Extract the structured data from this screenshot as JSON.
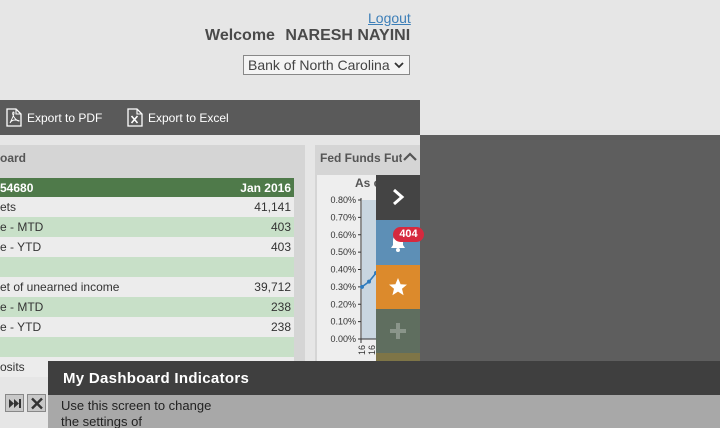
{
  "header": {
    "logout": "Logout",
    "welcome": "Welcome",
    "user": "NARESH NAYINI",
    "bank": "Bank of North Carolina"
  },
  "toolbar": {
    "pdf": "Export to PDF",
    "excel": "Export to Excel"
  },
  "dashboard": {
    "title": "oard",
    "header_left": "54680",
    "header_right": "Jan 2016",
    "rows": [
      {
        "label": "ets",
        "value": "41,141"
      },
      {
        "label": "e - MTD",
        "value": "403"
      },
      {
        "label": "e - YTD",
        "value": "403"
      },
      {
        "label": "",
        "value": ""
      },
      {
        "label": "et of unearned income",
        "value": "39,712"
      },
      {
        "label": "e - MTD",
        "value": "238"
      },
      {
        "label": "e - YTD",
        "value": "238"
      },
      {
        "label": "",
        "value": ""
      },
      {
        "label": "osits",
        "value": ""
      }
    ]
  },
  "fed": {
    "title": "Fed Funds Fut",
    "asof": "As o"
  },
  "chart_data": {
    "type": "line",
    "title": "Fed Funds Fut",
    "ytick_labels": [
      "0.80%",
      "0.70%",
      "0.60%",
      "0.50%",
      "0.40%",
      "0.30%",
      "0.20%",
      "0.10%",
      "0.00%"
    ],
    "yticks": [
      0.8,
      0.7,
      0.6,
      0.5,
      0.4,
      0.3,
      0.2,
      0.1,
      0.0
    ],
    "ylim": [
      0,
      0.8
    ],
    "x_tick_labels": [
      "16",
      "16"
    ],
    "series": [
      {
        "values": [
          0.3,
          0.33,
          0.38
        ]
      }
    ]
  },
  "rail": {
    "badge": "404"
  },
  "tip": {
    "title": "My Dashboard Indicators",
    "body": "Use this screen to change the settings of"
  },
  "colors": {
    "dash_header": "#4f7a4a",
    "row_green": "#c8e0c8",
    "rail_bell": "#5d8fb6",
    "rail_star": "#dc8a2c",
    "badge": "#d6293e"
  }
}
